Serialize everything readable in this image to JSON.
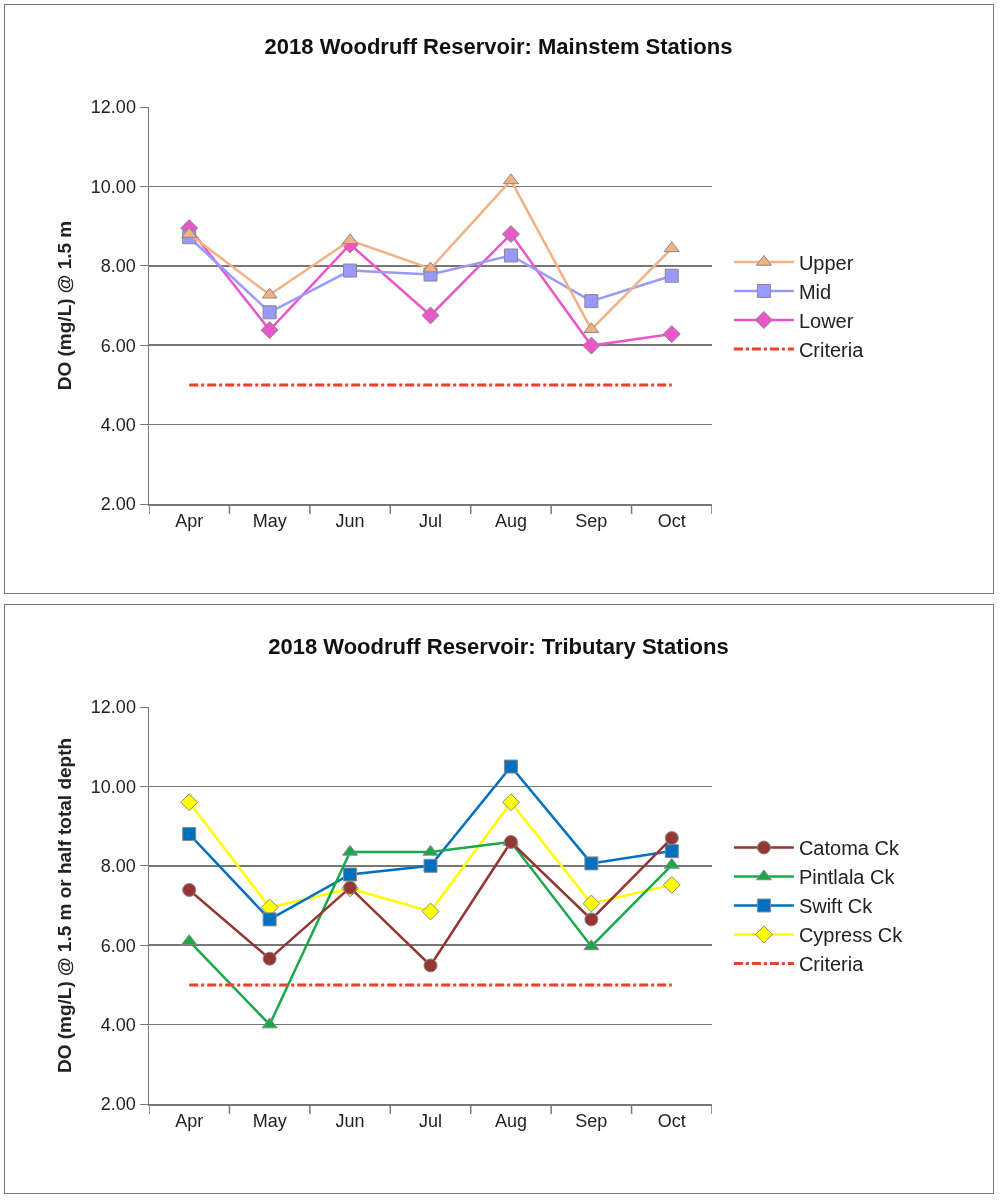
{
  "chart_data": [
    {
      "type": "line",
      "title": "2018 Woodruff Reservoir: Mainstem Stations",
      "ylabel": "DO (mg/L) @ 1.5 m",
      "categories": [
        "Apr",
        "May",
        "Jun",
        "Jul",
        "Aug",
        "Sep",
        "Oct"
      ],
      "series": [
        {
          "name": "Upper",
          "color": "#f4b183",
          "marker": "triangle",
          "values": [
            8.8,
            7.27,
            8.64,
            7.93,
            10.15,
            6.4,
            8.44
          ]
        },
        {
          "name": "Mid",
          "color": "#9999ff",
          "marker": "square",
          "values": [
            8.72,
            6.83,
            7.88,
            7.78,
            8.26,
            7.11,
            7.75
          ]
        },
        {
          "name": "Lower",
          "color": "#e957c8",
          "marker": "diamond",
          "values": [
            8.95,
            6.38,
            8.54,
            6.75,
            8.8,
            5.99,
            6.28
          ]
        }
      ],
      "ref_lines": [
        {
          "axis": "y",
          "value": 5,
          "label": "Criteria",
          "color": "#e8412c",
          "line_style": "dashdot"
        }
      ],
      "ylim": [
        2,
        12
      ],
      "yticks": [
        {
          "value": 2,
          "label": "2.00"
        },
        {
          "value": 4,
          "label": "4.00"
        },
        {
          "value": 6,
          "label": "6.00"
        },
        {
          "value": 8,
          "label": "8.00"
        },
        {
          "value": 10,
          "label": "10.00"
        },
        {
          "value": 12,
          "label": "12.00"
        }
      ],
      "grid": "y",
      "legend": "right",
      "line_style": "solid"
    },
    {
      "type": "line",
      "title": "2018 Woodruff Reservoir: Tributary Stations",
      "ylabel": "DO (mg/L) @ 1.5 m or half total depth",
      "categories": [
        "Apr",
        "May",
        "Jun",
        "Jul",
        "Aug",
        "Sep",
        "Oct"
      ],
      "series": [
        {
          "name": "Catoma Ck",
          "color": "#943634",
          "marker": "circle",
          "values": [
            7.39,
            5.66,
            7.45,
            5.49,
            8.6,
            6.65,
            8.7
          ]
        },
        {
          "name": "Pintlala Ck",
          "color": "#1aa84c",
          "marker": "triangle",
          "values": [
            6.1,
            4.0,
            8.35,
            8.35,
            8.6,
            5.97,
            8.02
          ]
        },
        {
          "name": "Swift Ck",
          "color": "#0070c0",
          "marker": "square",
          "values": [
            8.8,
            6.65,
            7.78,
            8.0,
            10.5,
            8.06,
            8.37
          ]
        },
        {
          "name": "Cypress Ck",
          "color": "#ffff00",
          "marker": "diamond",
          "values": [
            9.6,
            6.95,
            7.43,
            6.85,
            9.6,
            7.05,
            7.52
          ]
        }
      ],
      "ref_lines": [
        {
          "axis": "y",
          "value": 5,
          "label": "Criteria",
          "color": "#e8412c",
          "line_style": "dashdot"
        }
      ],
      "ylim": [
        2,
        12
      ],
      "yticks": [
        {
          "value": 2,
          "label": "2.00"
        },
        {
          "value": 4,
          "label": "4.00"
        },
        {
          "value": 6,
          "label": "6.00"
        },
        {
          "value": 8,
          "label": "8.00"
        },
        {
          "value": 10,
          "label": "10.00"
        },
        {
          "value": 12,
          "label": "12.00"
        }
      ],
      "grid": "y",
      "legend": "right",
      "line_style": "solid"
    }
  ]
}
